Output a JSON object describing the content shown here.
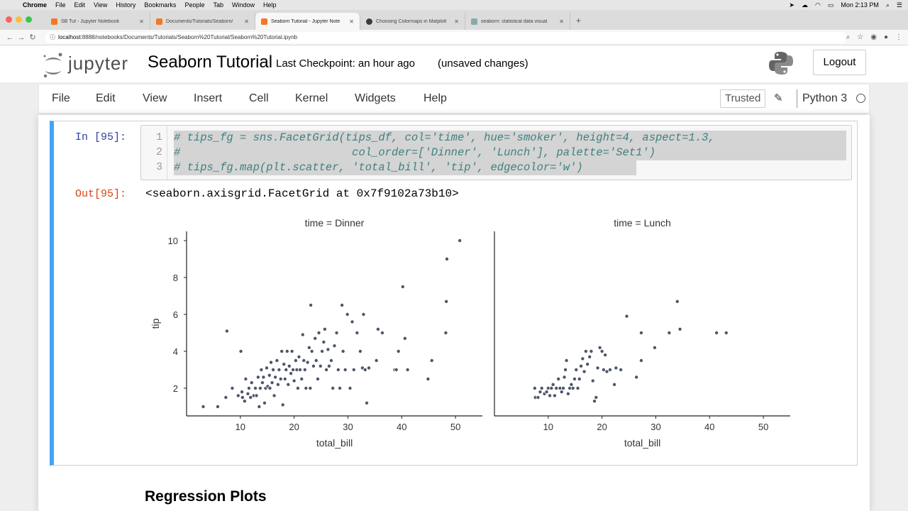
{
  "macos_menu": {
    "app": "Chrome",
    "items": [
      "File",
      "Edit",
      "View",
      "History",
      "Bookmarks",
      "People",
      "Tab",
      "Window",
      "Help"
    ],
    "clock": "Mon 2:13 PM"
  },
  "browser": {
    "tabs": [
      {
        "title": "SB Tut - Jupyter Notebook",
        "active": false
      },
      {
        "title": "Documents/Tutorials/Seaborn/",
        "active": false
      },
      {
        "title": "Seaborn Tutorial - Jupyter Note",
        "active": true
      },
      {
        "title": "Choosing Colormaps in Matplotl",
        "active": false
      },
      {
        "title": "seaborn: statistical data visual",
        "active": false
      }
    ],
    "url_host": "localhost",
    "url_path": ":8888/notebooks/Documents/Tutorials/Seaborn%20Tutorial/Seaborn%20Tutorial.ipynb"
  },
  "jupyter": {
    "logo_text": "jupyter",
    "notebook_name": "Seaborn Tutorial",
    "checkpoint": "Last Checkpoint: an hour ago",
    "unsaved": "(unsaved changes)",
    "logout": "Logout",
    "menu": [
      "File",
      "Edit",
      "View",
      "Insert",
      "Cell",
      "Kernel",
      "Widgets",
      "Help"
    ],
    "trusted": "Trusted",
    "kernel_name": "Python 3"
  },
  "cell": {
    "in_prompt": "In [95]:",
    "line_numbers": [
      "1",
      "2",
      "3"
    ],
    "code_lines": [
      "# tips_fg = sns.FacetGrid(tips_df, col='time', hue='smoker', height=4, aspect=1.3,",
      "#                          col_order=['Dinner', 'Lunch'], palette='Set1')",
      "# tips_fg.map(plt.scatter, 'total_bill', 'tip', edgecolor='w')"
    ],
    "out_prompt": "Out[95]:",
    "output_text": "<seaborn.axisgrid.FacetGrid at 0x7f9102a73b10>"
  },
  "next_heading": "Regression Plots",
  "colors": {
    "cell_selected_border": "#42a5f5",
    "in_prompt": "#303f9f",
    "out_prompt": "#d84315",
    "point": "#4c566a"
  },
  "chart_data": [
    {
      "type": "scatter",
      "title": "time = Dinner",
      "xlabel": "total_bill",
      "ylabel": "tip",
      "xlim": [
        0,
        55
      ],
      "ylim": [
        0.5,
        10.5
      ],
      "xticks": [
        10,
        20,
        30,
        40,
        50
      ],
      "yticks": [
        2,
        4,
        6,
        8,
        10
      ],
      "points": [
        [
          3.1,
          1.0
        ],
        [
          5.8,
          1.0
        ],
        [
          7.3,
          1.5
        ],
        [
          7.5,
          5.1
        ],
        [
          8.5,
          2.0
        ],
        [
          9.6,
          1.6
        ],
        [
          10.1,
          4.0
        ],
        [
          10.3,
          1.8
        ],
        [
          10.4,
          1.5
        ],
        [
          10.8,
          1.3
        ],
        [
          11.0,
          2.5
        ],
        [
          11.4,
          1.7
        ],
        [
          11.6,
          2.0
        ],
        [
          11.9,
          1.5
        ],
        [
          12.1,
          2.3
        ],
        [
          12.5,
          1.6
        ],
        [
          12.8,
          2.0
        ],
        [
          13.0,
          1.6
        ],
        [
          13.3,
          2.6
        ],
        [
          13.5,
          1.0
        ],
        [
          13.7,
          2.0
        ],
        [
          13.9,
          3.0
        ],
        [
          14.1,
          2.3
        ],
        [
          14.3,
          2.6
        ],
        [
          14.5,
          1.2
        ],
        [
          14.7,
          2.0
        ],
        [
          14.9,
          3.1
        ],
        [
          15.1,
          2.1
        ],
        [
          15.4,
          2.7
        ],
        [
          15.5,
          2.0
        ],
        [
          15.7,
          3.4
        ],
        [
          15.9,
          2.3
        ],
        [
          16.1,
          3.0
        ],
        [
          16.3,
          1.6
        ],
        [
          16.5,
          2.6
        ],
        [
          16.8,
          3.5
        ],
        [
          17.0,
          2.2
        ],
        [
          17.2,
          3.0
        ],
        [
          17.5,
          2.5
        ],
        [
          17.7,
          4.0
        ],
        [
          17.9,
          1.1
        ],
        [
          18.1,
          3.3
        ],
        [
          18.3,
          2.5
        ],
        [
          18.5,
          3.0
        ],
        [
          18.7,
          4.0
        ],
        [
          18.9,
          2.2
        ],
        [
          19.1,
          3.2
        ],
        [
          19.4,
          2.8
        ],
        [
          19.6,
          4.0
        ],
        [
          19.8,
          3.0
        ],
        [
          20.0,
          2.4
        ],
        [
          20.3,
          3.5
        ],
        [
          20.5,
          3.0
        ],
        [
          20.7,
          2.0
        ],
        [
          20.9,
          3.7
        ],
        [
          21.1,
          3.0
        ],
        [
          21.4,
          2.5
        ],
        [
          21.6,
          4.9
        ],
        [
          21.8,
          3.5
        ],
        [
          22.0,
          3.0
        ],
        [
          22.2,
          2.0
        ],
        [
          22.5,
          3.4
        ],
        [
          22.8,
          4.2
        ],
        [
          23.0,
          2.0
        ],
        [
          23.1,
          6.5
        ],
        [
          23.3,
          4.0
        ],
        [
          23.6,
          3.2
        ],
        [
          23.9,
          4.7
        ],
        [
          24.1,
          3.5
        ],
        [
          24.4,
          2.5
        ],
        [
          24.6,
          5.0
        ],
        [
          24.9,
          3.2
        ],
        [
          25.2,
          4.0
        ],
        [
          25.5,
          4.5
        ],
        [
          25.7,
          5.2
        ],
        [
          26.0,
          3.0
        ],
        [
          26.3,
          4.1
        ],
        [
          26.5,
          3.2
        ],
        [
          26.9,
          3.5
        ],
        [
          27.2,
          2.0
        ],
        [
          27.5,
          4.3
        ],
        [
          27.9,
          5.0
        ],
        [
          28.2,
          3.0
        ],
        [
          28.5,
          2.0
        ],
        [
          28.9,
          6.5
        ],
        [
          29.1,
          4.0
        ],
        [
          29.5,
          3.0
        ],
        [
          29.9,
          6.0
        ],
        [
          30.4,
          2.0
        ],
        [
          30.8,
          5.6
        ],
        [
          31.1,
          3.0
        ],
        [
          31.7,
          5.0
        ],
        [
          32.3,
          4.0
        ],
        [
          32.7,
          3.1
        ],
        [
          32.9,
          6.0
        ],
        [
          33.2,
          3.0
        ],
        [
          33.5,
          1.2
        ],
        [
          33.9,
          3.1
        ],
        [
          35.3,
          3.5
        ],
        [
          35.6,
          5.2
        ],
        [
          36.4,
          5.0
        ],
        [
          38.7,
          3.0
        ],
        [
          39.0,
          3.0
        ],
        [
          39.4,
          4.0
        ],
        [
          40.2,
          7.5
        ],
        [
          40.6,
          4.7
        ],
        [
          41.1,
          3.0
        ],
        [
          44.9,
          2.5
        ],
        [
          45.6,
          3.5
        ],
        [
          48.2,
          5.0
        ],
        [
          48.3,
          6.7
        ],
        [
          48.4,
          9.0
        ],
        [
          50.8,
          10.0
        ]
      ]
    },
    {
      "type": "scatter",
      "title": "time = Lunch",
      "xlabel": "total_bill",
      "ylabel": "",
      "xlim": [
        0,
        55
      ],
      "ylim": [
        0.5,
        10.5
      ],
      "xticks": [
        10,
        20,
        30,
        40,
        50
      ],
      "yticks": [],
      "points": [
        [
          7.5,
          2.0
        ],
        [
          7.6,
          1.5
        ],
        [
          8.1,
          1.5
        ],
        [
          8.5,
          1.8
        ],
        [
          8.8,
          2.0
        ],
        [
          9.3,
          1.7
        ],
        [
          9.7,
          1.8
        ],
        [
          10.0,
          2.0
        ],
        [
          10.3,
          1.6
        ],
        [
          10.6,
          2.0
        ],
        [
          10.9,
          2.2
        ],
        [
          11.2,
          1.6
        ],
        [
          11.5,
          2.0
        ],
        [
          11.9,
          2.5
        ],
        [
          12.2,
          2.0
        ],
        [
          12.5,
          1.8
        ],
        [
          12.8,
          2.0
        ],
        [
          13.0,
          2.6
        ],
        [
          13.2,
          3.0
        ],
        [
          13.4,
          3.5
        ],
        [
          13.7,
          1.7
        ],
        [
          14.0,
          2.0
        ],
        [
          14.3,
          2.2
        ],
        [
          14.6,
          2.0
        ],
        [
          14.9,
          2.5
        ],
        [
          15.2,
          3.0
        ],
        [
          15.5,
          2.0
        ],
        [
          15.8,
          2.5
        ],
        [
          16.1,
          3.2
        ],
        [
          16.4,
          3.6
        ],
        [
          16.7,
          2.9
        ],
        [
          17.0,
          4.0
        ],
        [
          17.3,
          3.3
        ],
        [
          17.7,
          3.7
        ],
        [
          18.0,
          4.0
        ],
        [
          18.3,
          2.4
        ],
        [
          18.6,
          1.3
        ],
        [
          18.9,
          1.5
        ],
        [
          19.2,
          3.1
        ],
        [
          19.6,
          4.2
        ],
        [
          20.0,
          4.0
        ],
        [
          20.3,
          3.0
        ],
        [
          20.6,
          3.8
        ],
        [
          20.9,
          2.9
        ],
        [
          21.5,
          3.0
        ],
        [
          22.3,
          2.2
        ],
        [
          22.6,
          3.1
        ],
        [
          23.5,
          3.0
        ],
        [
          24.6,
          5.9
        ],
        [
          26.4,
          2.6
        ],
        [
          27.3,
          3.5
        ],
        [
          27.3,
          5.0
        ],
        [
          29.8,
          4.2
        ],
        [
          32.5,
          5.0
        ],
        [
          34.0,
          6.7
        ],
        [
          34.5,
          5.2
        ],
        [
          41.3,
          5.0
        ],
        [
          43.1,
          5.0
        ]
      ]
    }
  ]
}
